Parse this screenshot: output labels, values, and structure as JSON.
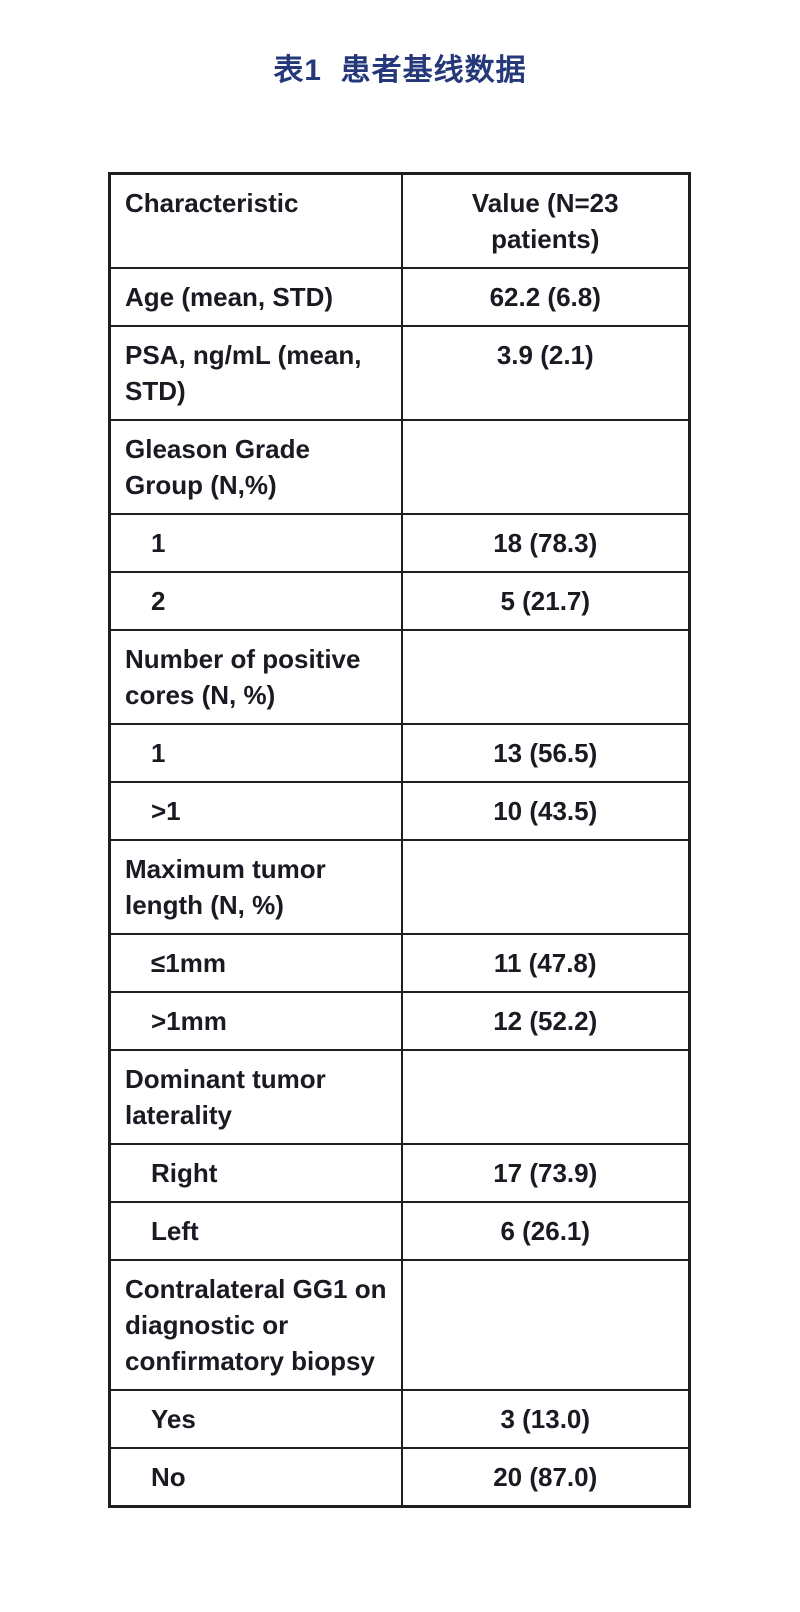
{
  "page": {
    "background_color": "#ffffff",
    "title": {
      "text": "表1  患者基线数据",
      "color": "#25397a"
    }
  },
  "table": {
    "border_color": "#1f1f1f",
    "text_color": "#1a1a22",
    "columns": {
      "characteristic": "Characteristic",
      "value": "Value (N=23 patients)"
    },
    "rows": [
      {
        "label": "Age (mean, STD)",
        "value": "62.2 (6.8)",
        "indent": false
      },
      {
        "label": "PSA, ng/mL (mean, STD)",
        "value": "3.9 (2.1)",
        "indent": false
      },
      {
        "label": "Gleason Grade Group (N,%)",
        "value": "",
        "indent": false
      },
      {
        "label": "1",
        "value": "18 (78.3)",
        "indent": true
      },
      {
        "label": "2",
        "value": "5 (21.7)",
        "indent": true
      },
      {
        "label": "Number of positive cores (N, %)",
        "value": "",
        "indent": false
      },
      {
        "label": "1",
        "value": "13 (56.5)",
        "indent": true
      },
      {
        "label": ">1",
        "value": "10 (43.5)",
        "indent": true
      },
      {
        "label": "Maximum tumor length (N, %)",
        "value": "",
        "indent": false
      },
      {
        "label": "≤1mm",
        "value": "11 (47.8)",
        "indent": true
      },
      {
        "label": ">1mm",
        "value": "12 (52.2)",
        "indent": true
      },
      {
        "label": "Dominant tumor laterality",
        "value": "",
        "indent": false
      },
      {
        "label": "Right",
        "value": "17 (73.9)",
        "indent": true
      },
      {
        "label": "Left",
        "value": "6 (26.1)",
        "indent": true
      },
      {
        "label": "Contralateral GG1 on diagnostic or confirmatory biopsy",
        "value": "",
        "indent": false
      },
      {
        "label": "Yes",
        "value": "3 (13.0)",
        "indent": true
      },
      {
        "label": "No",
        "value": "20 (87.0)",
        "indent": true
      }
    ]
  }
}
